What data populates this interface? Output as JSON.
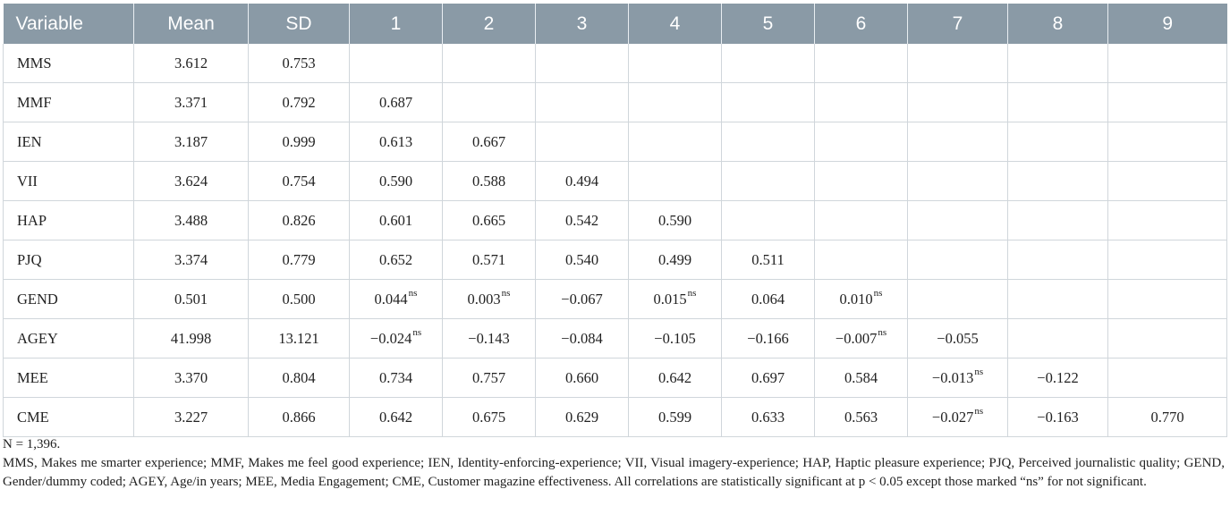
{
  "table": {
    "headers": [
      "Variable",
      "Mean",
      "SD",
      "1",
      "2",
      "3",
      "4",
      "5",
      "6",
      "7",
      "8",
      "9"
    ],
    "rows": [
      {
        "cells": [
          {
            "v": "MMS"
          },
          {
            "v": "3.612"
          },
          {
            "v": "0.753"
          },
          {
            "v": ""
          },
          {
            "v": ""
          },
          {
            "v": ""
          },
          {
            "v": ""
          },
          {
            "v": ""
          },
          {
            "v": ""
          },
          {
            "v": ""
          },
          {
            "v": ""
          },
          {
            "v": ""
          }
        ]
      },
      {
        "cells": [
          {
            "v": "MMF"
          },
          {
            "v": "3.371"
          },
          {
            "v": "0.792"
          },
          {
            "v": "0.687"
          },
          {
            "v": ""
          },
          {
            "v": ""
          },
          {
            "v": ""
          },
          {
            "v": ""
          },
          {
            "v": ""
          },
          {
            "v": ""
          },
          {
            "v": ""
          },
          {
            "v": ""
          }
        ]
      },
      {
        "cells": [
          {
            "v": "IEN"
          },
          {
            "v": "3.187"
          },
          {
            "v": "0.999"
          },
          {
            "v": "0.613"
          },
          {
            "v": "0.667"
          },
          {
            "v": ""
          },
          {
            "v": ""
          },
          {
            "v": ""
          },
          {
            "v": ""
          },
          {
            "v": ""
          },
          {
            "v": ""
          },
          {
            "v": ""
          }
        ]
      },
      {
        "cells": [
          {
            "v": "VII"
          },
          {
            "v": "3.624"
          },
          {
            "v": "0.754"
          },
          {
            "v": "0.590"
          },
          {
            "v": "0.588"
          },
          {
            "v": "0.494"
          },
          {
            "v": ""
          },
          {
            "v": ""
          },
          {
            "v": ""
          },
          {
            "v": ""
          },
          {
            "v": ""
          },
          {
            "v": ""
          }
        ]
      },
      {
        "cells": [
          {
            "v": "HAP"
          },
          {
            "v": "3.488"
          },
          {
            "v": "0.826"
          },
          {
            "v": "0.601"
          },
          {
            "v": "0.665"
          },
          {
            "v": "0.542"
          },
          {
            "v": "0.590"
          },
          {
            "v": ""
          },
          {
            "v": ""
          },
          {
            "v": ""
          },
          {
            "v": ""
          },
          {
            "v": ""
          }
        ]
      },
      {
        "cells": [
          {
            "v": "PJQ"
          },
          {
            "v": "3.374"
          },
          {
            "v": "0.779"
          },
          {
            "v": "0.652"
          },
          {
            "v": "0.571"
          },
          {
            "v": "0.540"
          },
          {
            "v": "0.499"
          },
          {
            "v": "0.511"
          },
          {
            "v": ""
          },
          {
            "v": ""
          },
          {
            "v": ""
          },
          {
            "v": ""
          }
        ]
      },
      {
        "cells": [
          {
            "v": "GEND"
          },
          {
            "v": "0.501"
          },
          {
            "v": "0.500"
          },
          {
            "v": "0.044",
            "sup": "ns"
          },
          {
            "v": "0.003",
            "sup": "ns"
          },
          {
            "v": "−0.067"
          },
          {
            "v": "0.015",
            "sup": "ns"
          },
          {
            "v": "0.064"
          },
          {
            "v": "0.010",
            "sup": "ns"
          },
          {
            "v": ""
          },
          {
            "v": ""
          },
          {
            "v": ""
          }
        ]
      },
      {
        "cells": [
          {
            "v": "AGEY"
          },
          {
            "v": "41.998"
          },
          {
            "v": "13.121"
          },
          {
            "v": "−0.024",
            "sup": "ns"
          },
          {
            "v": "−0.143"
          },
          {
            "v": "−0.084"
          },
          {
            "v": "−0.105"
          },
          {
            "v": "−0.166"
          },
          {
            "v": "−0.007",
            "sup": "ns"
          },
          {
            "v": "−0.055"
          },
          {
            "v": ""
          },
          {
            "v": ""
          }
        ]
      },
      {
        "cells": [
          {
            "v": "MEE"
          },
          {
            "v": "3.370"
          },
          {
            "v": "0.804"
          },
          {
            "v": "0.734"
          },
          {
            "v": "0.757"
          },
          {
            "v": "0.660"
          },
          {
            "v": "0.642"
          },
          {
            "v": "0.697"
          },
          {
            "v": "0.584"
          },
          {
            "v": "−0.013",
            "sup": "ns"
          },
          {
            "v": "−0.122"
          },
          {
            "v": ""
          }
        ]
      },
      {
        "cells": [
          {
            "v": "CME"
          },
          {
            "v": "3.227"
          },
          {
            "v": "0.866"
          },
          {
            "v": "0.642"
          },
          {
            "v": "0.675"
          },
          {
            "v": "0.629"
          },
          {
            "v": "0.599"
          },
          {
            "v": "0.633"
          },
          {
            "v": "0.563"
          },
          {
            "v": "−0.027",
            "sup": "ns"
          },
          {
            "v": "−0.163"
          },
          {
            "v": "0.770"
          }
        ]
      }
    ]
  },
  "notes": {
    "n": "N = 1,396.",
    "legend": "MMS, Makes me smarter experience; MMF, Makes me feel good experience; IEN, Identity-enforcing-experience; VII, Visual imagery-experience; HAP, Haptic pleasure experience; PJQ, Perceived journalistic quality; GEND, Gender/dummy coded; AGEY, Age/in years; MEE, Media Engagement; CME, Customer magazine effectiveness. All correlations are statistically significant at p < 0.05 except those marked “ns” for not significant."
  },
  "colors": {
    "header_bg": "#8a9aa6",
    "header_text": "#ffffff",
    "grid": "#d0d6db"
  }
}
